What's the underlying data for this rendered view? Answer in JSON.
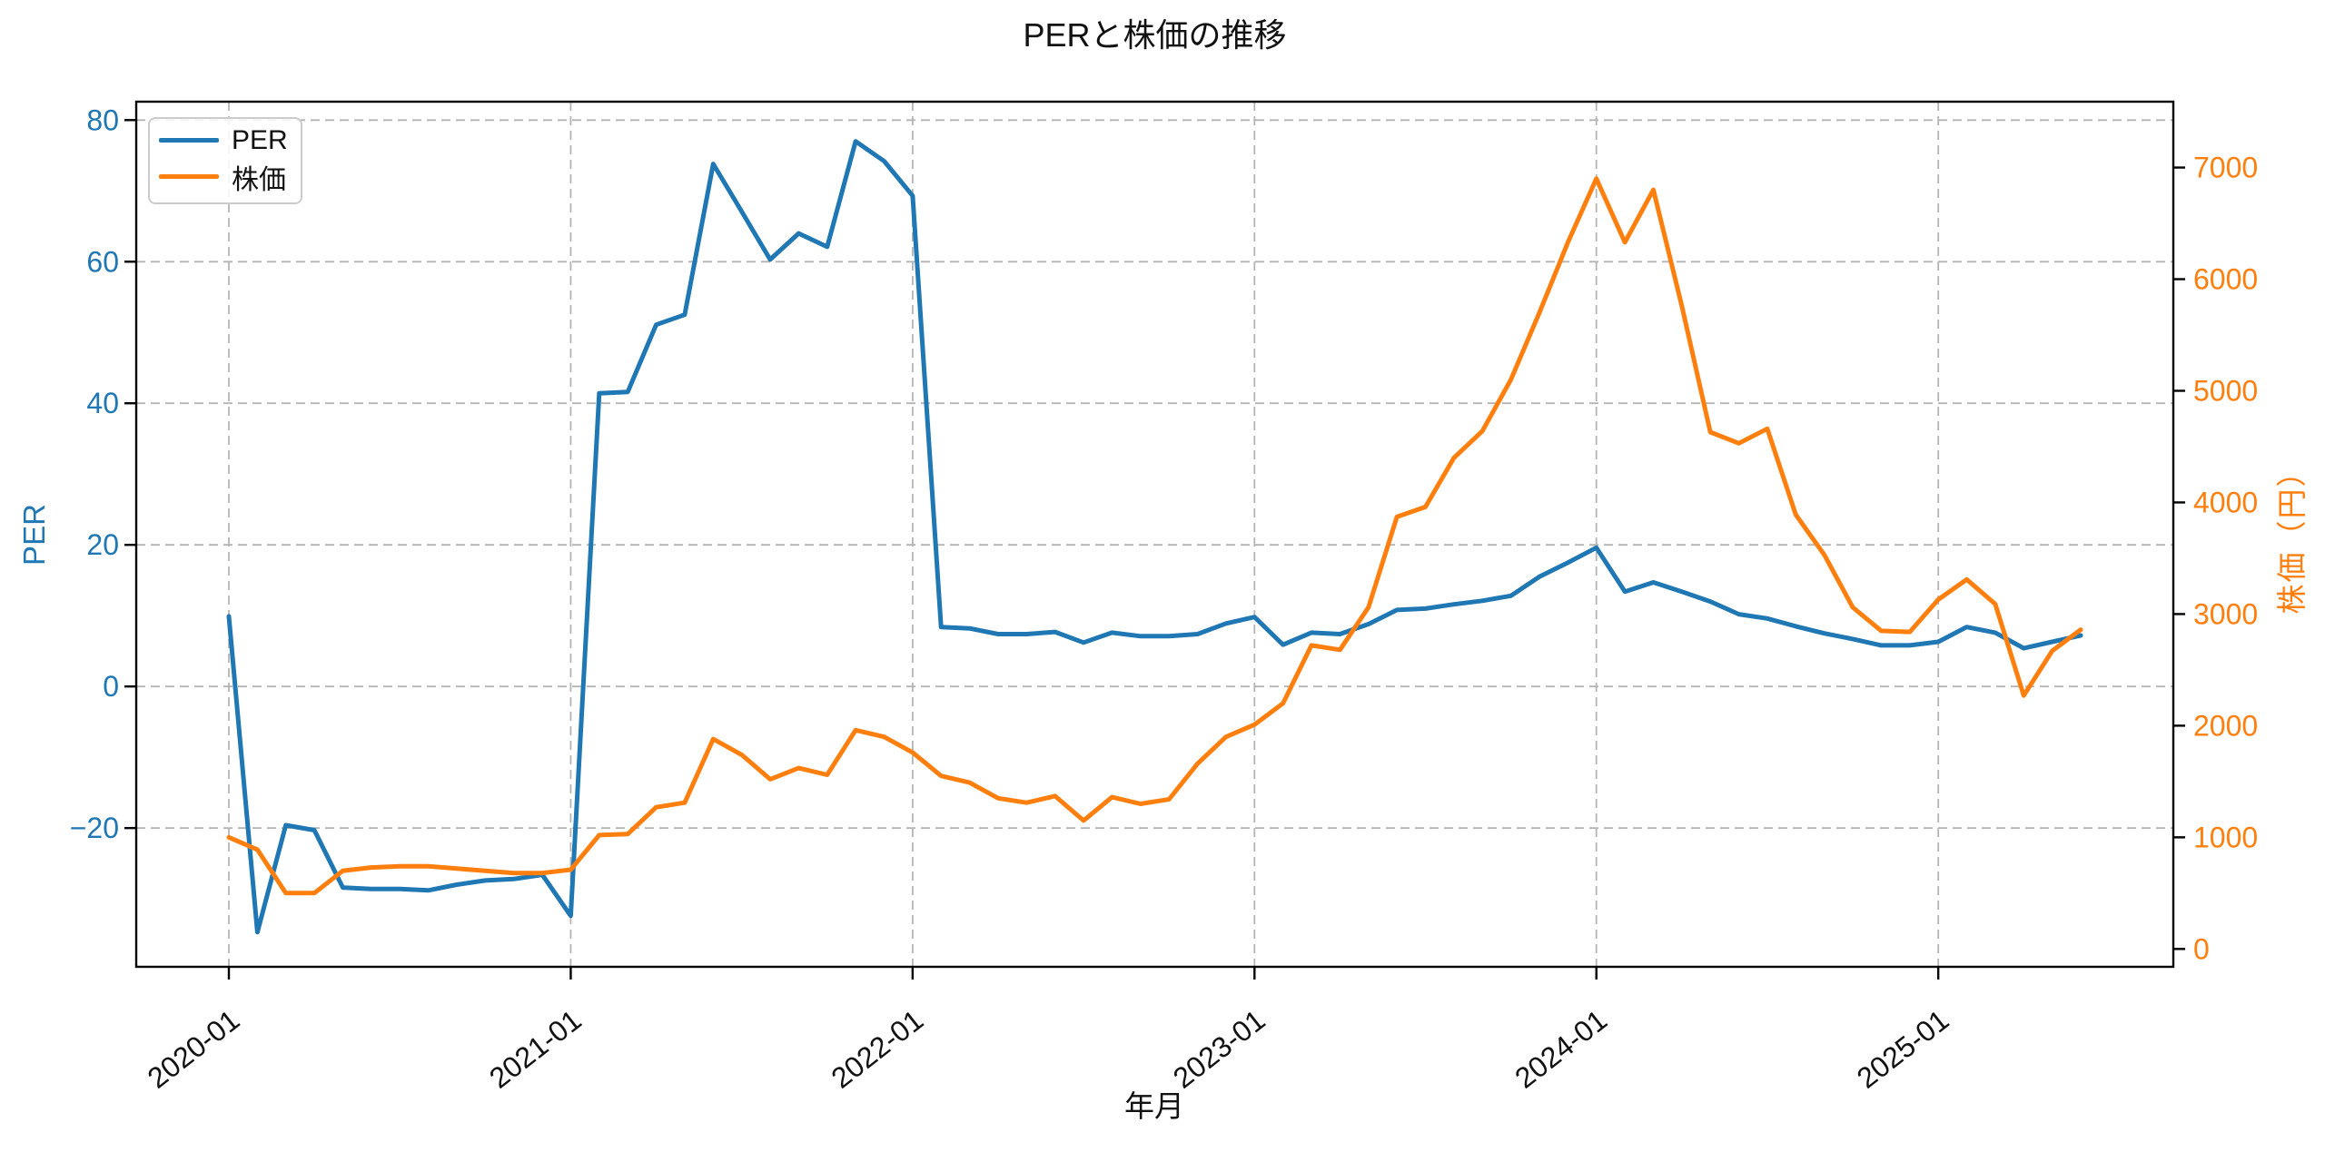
{
  "figure": {
    "title": "PERと株価の推移",
    "xlabel": "年月"
  },
  "legend": {
    "position": "upper left",
    "items": [
      {
        "label": "PER",
        "color": "#1f77b4"
      },
      {
        "label": "株価",
        "color": "#ff7f0e"
      }
    ]
  },
  "left_axis": {
    "label": "PER",
    "color": "#1f77b4",
    "range": [
      -39.6,
      82.6
    ],
    "ticks": [
      80,
      60,
      40,
      20,
      0,
      -20
    ],
    "tick_labels": [
      "80",
      "60",
      "40",
      "20",
      "0",
      "−20"
    ]
  },
  "right_axis": {
    "label": "株価（円）",
    "color": "#ff7f0e",
    "range": [
      -160,
      7590
    ],
    "ticks": [
      7000,
      6000,
      5000,
      4000,
      3000,
      2000,
      1000,
      0
    ],
    "tick_labels": [
      "7000",
      "6000",
      "5000",
      "4000",
      "3000",
      "2000",
      "1000",
      "0"
    ]
  },
  "chart_data": {
    "type": "line",
    "title": "PERと株価の推移",
    "xlabel": "年月",
    "grid": true,
    "legend_position": "upper left",
    "x": [
      "2020-01",
      "2020-02",
      "2020-03",
      "2020-04",
      "2020-05",
      "2020-06",
      "2020-07",
      "2020-08",
      "2020-09",
      "2020-10",
      "2020-11",
      "2020-12",
      "2021-01",
      "2021-02",
      "2021-03",
      "2021-04",
      "2021-05",
      "2021-06",
      "2021-07",
      "2021-08",
      "2021-09",
      "2021-10",
      "2021-11",
      "2021-12",
      "2022-01",
      "2022-02",
      "2022-03",
      "2022-04",
      "2022-05",
      "2022-06",
      "2022-07",
      "2022-08",
      "2022-09",
      "2022-10",
      "2022-11",
      "2022-12",
      "2023-01",
      "2023-02",
      "2023-03",
      "2023-04",
      "2023-05",
      "2023-06",
      "2023-07",
      "2023-08",
      "2023-09",
      "2023-10",
      "2023-11",
      "2023-12",
      "2024-01",
      "2024-02",
      "2024-03",
      "2024-04",
      "2024-05",
      "2024-06",
      "2024-07",
      "2024-08",
      "2024-09",
      "2024-10",
      "2024-11",
      "2024-12",
      "2025-01",
      "2025-02",
      "2025-03",
      "2025-04",
      "2025-05",
      "2025-06"
    ],
    "x_tick_indices": [
      0,
      12,
      24,
      36,
      48,
      60
    ],
    "x_tick_labels": [
      "2020-01",
      "2021-01",
      "2022-01",
      "2023-01",
      "2024-01",
      "2025-01"
    ],
    "series": [
      {
        "name": "PER",
        "axis": "left",
        "color": "#1f77b4",
        "values": [
          9.9,
          -34.7,
          -19.6,
          -20.3,
          -28.4,
          -28.6,
          -28.6,
          -28.8,
          -28.0,
          -27.4,
          -27.2,
          -26.6,
          -32.4,
          41.4,
          41.6,
          51.1,
          52.5,
          73.8,
          67.1,
          60.3,
          64.0,
          62.1,
          77.0,
          74.2,
          69.3,
          8.4,
          8.2,
          7.4,
          7.4,
          7.7,
          6.2,
          7.6,
          7.1,
          7.1,
          7.4,
          8.9,
          9.8,
          5.9,
          7.6,
          7.4,
          8.8,
          10.8,
          11.0,
          11.6,
          12.1,
          12.8,
          15.5,
          17.5,
          19.6,
          13.4,
          14.7,
          13.4,
          12.0,
          10.2,
          9.6,
          8.5,
          7.5,
          6.7,
          5.8,
          5.8,
          6.3,
          8.4,
          7.6,
          5.4,
          6.3,
          7.2
        ]
      },
      {
        "name": "株価",
        "axis": "right",
        "color": "#ff7f0e",
        "values": [
          1000,
          890,
          500,
          500,
          700,
          730,
          740,
          740,
          720,
          700,
          680,
          680,
          710,
          1020,
          1030,
          1270,
          1310,
          1880,
          1740,
          1520,
          1620,
          1560,
          1960,
          1900,
          1760,
          1550,
          1490,
          1350,
          1310,
          1370,
          1150,
          1360,
          1300,
          1340,
          1660,
          1900,
          2010,
          2200,
          2720,
          2680,
          3060,
          3870,
          3960,
          4400,
          4640,
          5100,
          5700,
          6330,
          6900,
          6330,
          6800,
          5760,
          4630,
          4530,
          4660,
          3890,
          3530,
          3060,
          2850,
          2840,
          3130,
          3310,
          3090,
          2270,
          2670,
          2860
        ]
      }
    ]
  },
  "style": {
    "grid_color": "#b4b4b4",
    "spine_color": "#000000",
    "background": "#ffffff",
    "line_width": 5
  }
}
